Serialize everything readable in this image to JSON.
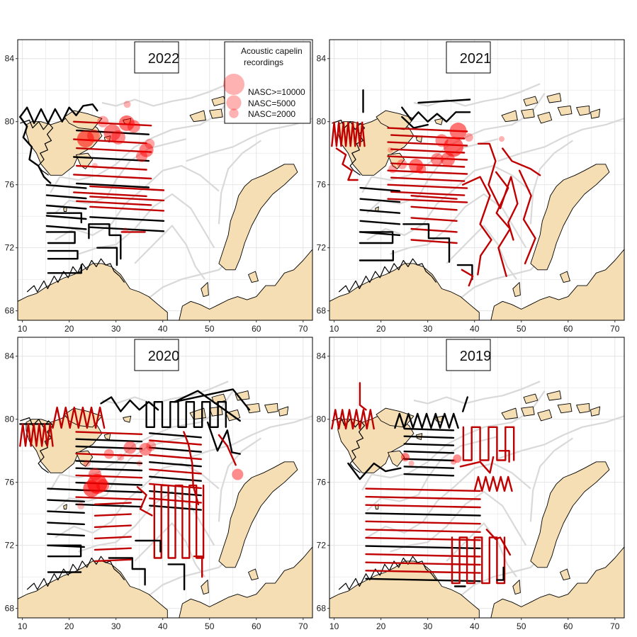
{
  "figure": {
    "axes": {
      "x_ticks": [
        "10",
        "20",
        "30",
        "40",
        "50",
        "60",
        "70"
      ],
      "y_ticks": [
        "68",
        "72",
        "76",
        "80",
        "84"
      ],
      "x_range": [
        9,
        72
      ],
      "y_range": [
        67.4,
        85.2
      ]
    },
    "panels": [
      {
        "year": "2022"
      },
      {
        "year": "2021"
      },
      {
        "year": "2020"
      },
      {
        "year": "2019"
      }
    ],
    "legend": {
      "title_line1": "Acoustic capelin",
      "title_line2": "recordings",
      "items": [
        {
          "label": "NASC>=10000",
          "nasc": 10000
        },
        {
          "label": "NASC=5000",
          "nasc": 5000
        },
        {
          "label": "NASC=2000",
          "nasc": 2000
        }
      ]
    },
    "colors": {
      "land": "#f5deb3",
      "contour": "#d9d9d9",
      "grid": "#e4e4e4",
      "track_black": "#000000",
      "track_red": "#c00000",
      "recording": "#ff0000"
    }
  }
}
